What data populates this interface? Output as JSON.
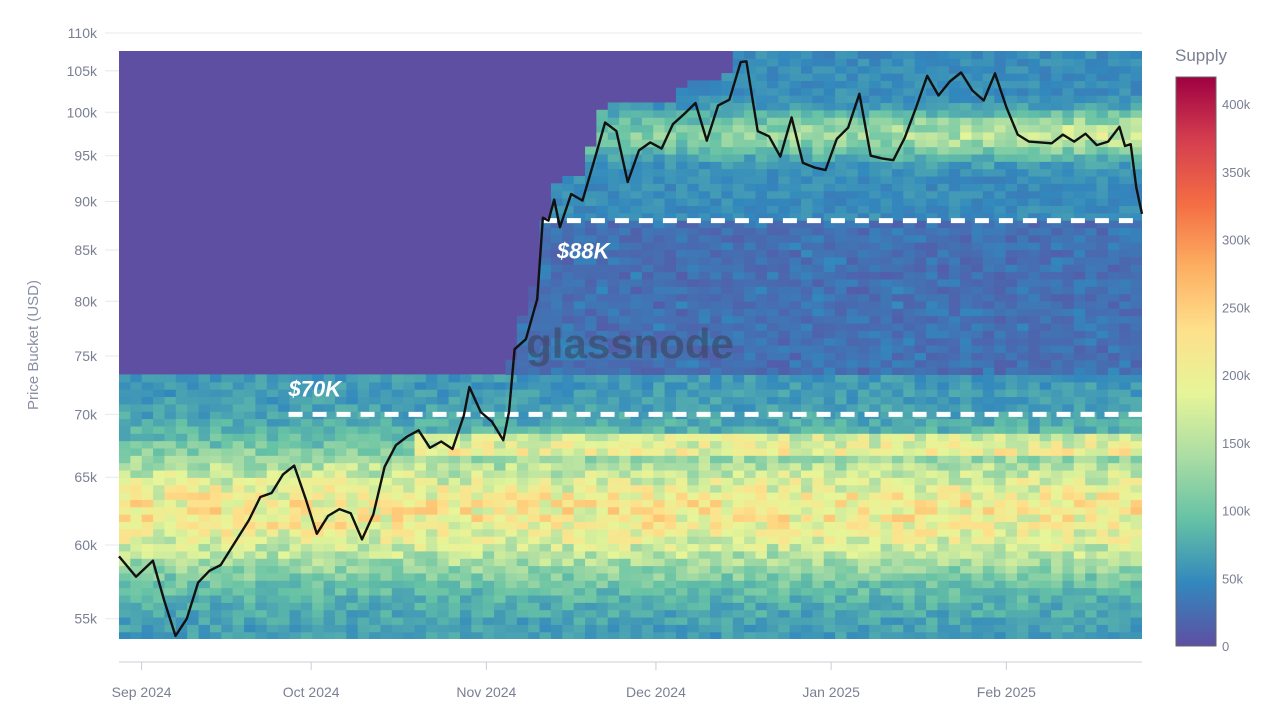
{
  "chart_data": {
    "type": "heatmap",
    "title": "",
    "xlabel": "",
    "ylabel": "Price Bucket (USD)",
    "x_ticks": [
      "Sep 2024",
      "Oct 2024",
      "Nov 2024",
      "Dec 2024",
      "Jan 2025",
      "Feb 2025"
    ],
    "x_range": [
      "2024-08-28",
      "2025-02-25"
    ],
    "y_ticks": [
      "55k",
      "60k",
      "65k",
      "70k",
      "75k",
      "80k",
      "85k",
      "90k",
      "95k",
      "100k",
      "105k",
      "110k"
    ],
    "y_tick_values": [
      55000,
      60000,
      65000,
      70000,
      75000,
      80000,
      85000,
      90000,
      95000,
      100000,
      105000,
      110000
    ],
    "y_scale": "log",
    "y_range": [
      53000,
      110000
    ],
    "colorbar": {
      "title": "Supply",
      "ticks": [
        "0",
        "50k",
        "100k",
        "150k",
        "200k",
        "250k",
        "300k",
        "350k",
        "400k"
      ],
      "tick_values": [
        0,
        50000,
        100000,
        150000,
        200000,
        250000,
        300000,
        350000,
        400000
      ],
      "range": [
        0,
        420000
      ],
      "colorscale": [
        "#5e4fa2",
        "#3288bd",
        "#66c2a5",
        "#abdda4",
        "#e6f598",
        "#fee08b",
        "#fdae61",
        "#f46d43",
        "#d53e4f",
        "#9e0142"
      ]
    },
    "series": [
      {
        "name": "",
        "type": "line",
        "color": "#111111",
        "points": [
          [
            "2024-08-28",
            59200
          ],
          [
            "2024-08-31",
            57800
          ],
          [
            "2024-09-03",
            58900
          ],
          [
            "2024-09-05",
            56200
          ],
          [
            "2024-09-07",
            53900
          ],
          [
            "2024-09-09",
            55000
          ],
          [
            "2024-09-11",
            57400
          ],
          [
            "2024-09-13",
            58200
          ],
          [
            "2024-09-15",
            58600
          ],
          [
            "2024-09-18",
            60500
          ],
          [
            "2024-09-20",
            61800
          ],
          [
            "2024-09-22",
            63500
          ],
          [
            "2024-09-24",
            63800
          ],
          [
            "2024-09-26",
            65200
          ],
          [
            "2024-09-28",
            65900
          ],
          [
            "2024-09-30",
            63400
          ],
          [
            "2024-10-02",
            60800
          ],
          [
            "2024-10-04",
            62100
          ],
          [
            "2024-10-06",
            62600
          ],
          [
            "2024-10-08",
            62300
          ],
          [
            "2024-10-10",
            60400
          ],
          [
            "2024-10-12",
            62200
          ],
          [
            "2024-10-14",
            65800
          ],
          [
            "2024-10-16",
            67500
          ],
          [
            "2024-10-18",
            68200
          ],
          [
            "2024-10-20",
            68700
          ],
          [
            "2024-10-22",
            67300
          ],
          [
            "2024-10-24",
            67800
          ],
          [
            "2024-10-26",
            67200
          ],
          [
            "2024-10-28",
            69900
          ],
          [
            "2024-10-29",
            72300
          ],
          [
            "2024-10-31",
            70200
          ],
          [
            "2024-11-02",
            69400
          ],
          [
            "2024-11-04",
            67900
          ],
          [
            "2024-11-05",
            70200
          ],
          [
            "2024-11-06",
            75600
          ],
          [
            "2024-11-08",
            76500
          ],
          [
            "2024-11-10",
            80200
          ],
          [
            "2024-11-11",
            88300
          ],
          [
            "2024-11-12",
            88000
          ],
          [
            "2024-11-13",
            90200
          ],
          [
            "2024-11-14",
            87300
          ],
          [
            "2024-11-16",
            90800
          ],
          [
            "2024-11-18",
            90100
          ],
          [
            "2024-11-20",
            94300
          ],
          [
            "2024-11-22",
            98800
          ],
          [
            "2024-11-24",
            97800
          ],
          [
            "2024-11-26",
            92100
          ],
          [
            "2024-11-28",
            95600
          ],
          [
            "2024-11-30",
            96500
          ],
          [
            "2024-12-02",
            95800
          ],
          [
            "2024-12-04",
            98600
          ],
          [
            "2024-12-06",
            99800
          ],
          [
            "2024-12-08",
            101100
          ],
          [
            "2024-12-10",
            96700
          ],
          [
            "2024-12-12",
            100800
          ],
          [
            "2024-12-14",
            101500
          ],
          [
            "2024-12-16",
            106100
          ],
          [
            "2024-12-17",
            106200
          ],
          [
            "2024-12-19",
            97800
          ],
          [
            "2024-12-21",
            97200
          ],
          [
            "2024-12-23",
            94900
          ],
          [
            "2024-12-25",
            99400
          ],
          [
            "2024-12-27",
            94200
          ],
          [
            "2024-12-29",
            93700
          ],
          [
            "2024-12-31",
            93400
          ],
          [
            "2025-01-02",
            96900
          ],
          [
            "2025-01-04",
            98200
          ],
          [
            "2025-01-06",
            102200
          ],
          [
            "2025-01-08",
            95000
          ],
          [
            "2025-01-10",
            94700
          ],
          [
            "2025-01-12",
            94500
          ],
          [
            "2025-01-14",
            97000
          ],
          [
            "2025-01-16",
            100500
          ],
          [
            "2025-01-18",
            104400
          ],
          [
            "2025-01-20",
            102000
          ],
          [
            "2025-01-22",
            103700
          ],
          [
            "2025-01-24",
            104800
          ],
          [
            "2025-01-26",
            102600
          ],
          [
            "2025-01-28",
            101400
          ],
          [
            "2025-01-30",
            104700
          ],
          [
            "2025-02-01",
            100600
          ],
          [
            "2025-02-03",
            97400
          ],
          [
            "2025-02-05",
            96600
          ],
          [
            "2025-02-07",
            96500
          ],
          [
            "2025-02-09",
            96400
          ],
          [
            "2025-02-11",
            97400
          ],
          [
            "2025-02-13",
            96600
          ],
          [
            "2025-02-15",
            97500
          ],
          [
            "2025-02-17",
            96200
          ],
          [
            "2025-02-19",
            96600
          ],
          [
            "2025-02-21",
            98300
          ],
          [
            "2025-02-22",
            96100
          ],
          [
            "2025-02-23",
            96300
          ],
          [
            "2025-02-24",
            91500
          ],
          [
            "2025-02-25",
            88700
          ]
        ]
      }
    ],
    "heatmap": {
      "note_bands": [],
      "bands": [
        {
          "x_start": "2024-08-28",
          "x_end": "2024-11-10",
          "y_from": 54000,
          "y_to": 56000,
          "level": 110000
        },
        {
          "x_start": "2024-08-28",
          "x_end": "2024-11-10",
          "y_from": 56000,
          "y_to": 58000,
          "level": 150000
        },
        {
          "x_start": "2024-08-28",
          "x_end": "2024-11-10",
          "y_from": 58000,
          "y_to": 60000,
          "level": 190000
        },
        {
          "x_start": "2024-08-28",
          "x_end": "2024-11-10",
          "y_from": 60000,
          "y_to": 62000,
          "level": 240000
        },
        {
          "x_start": "2024-08-28",
          "x_end": "2024-11-10",
          "y_from": 62000,
          "y_to": 64000,
          "level": 280000
        },
        {
          "x_start": "2024-08-28",
          "x_end": "2024-11-10",
          "y_from": 64000,
          "y_to": 66000,
          "level": 220000
        },
        {
          "x_start": "2024-08-28",
          "x_end": "2024-11-10",
          "y_from": 66000,
          "y_to": 68000,
          "level": 160000
        },
        {
          "x_start": "2024-08-28",
          "x_end": "2024-11-10",
          "y_from": 68000,
          "y_to": 70000,
          "level": 120000
        },
        {
          "x_start": "2024-08-28",
          "x_end": "2024-11-10",
          "y_from": 70000,
          "y_to": 73500,
          "level": 80000
        }
      ]
    },
    "annotations": [
      {
        "text": "$70K",
        "y": 70000,
        "x_start": "2024-09-27",
        "x_end": "2025-02-25",
        "style": "dashed",
        "color": "#ffffff"
      },
      {
        "text": "$88K",
        "y": 88000,
        "x_start": "2024-11-11",
        "x_end": "2025-02-25",
        "style": "dashed",
        "color": "#ffffff"
      }
    ],
    "grid": true,
    "legend": "right"
  },
  "watermark": "glassnode"
}
